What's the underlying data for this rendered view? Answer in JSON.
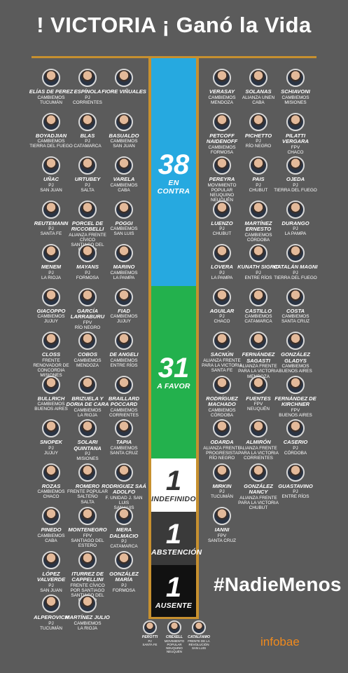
{
  "title": "! VICTORIA ¡  Ganó la Vida",
  "colors": {
    "background": "#5b5b5b",
    "gold": "#c7902f",
    "against": "#26a9e0",
    "favor": "#23b14d",
    "undefined": "#ffffff",
    "abstention": "#3a3a3a",
    "absent": "#111111"
  },
  "tally": {
    "against": {
      "count": "38",
      "label": "EN CONTRA"
    },
    "favor": {
      "count": "31",
      "label": "A FAVOR"
    },
    "undefined": {
      "count": "1",
      "label": "INDEFINIDO"
    },
    "abstention": {
      "count": "1",
      "label": "ABSTENCIÓN"
    },
    "absent": {
      "count": "1",
      "label": "AUSENTE"
    }
  },
  "left_senators": [
    [
      {
        "name": "ELÍAS DE PEREZ",
        "party": "CAMBIEMOS",
        "prov": "TUCUMÁN"
      },
      {
        "name": "ESPÍNOLA",
        "party": "PJ",
        "prov": "CORRIENTES"
      },
      {
        "name": "FIORE VIÑUALES",
        "party": "",
        "prov": ""
      }
    ],
    [
      {
        "name": "BOYADJIAN",
        "party": "CAMBIEMOS",
        "prov": "TIERRA DEL FUEGO"
      },
      {
        "name": "BLAS",
        "party": "PJ",
        "prov": "CATAMARCA"
      },
      {
        "name": "BASUALDO",
        "party": "CAMBIEMOS",
        "prov": "SAN JUAN"
      }
    ],
    [
      {
        "name": "UÑAC",
        "party": "PJ",
        "prov": "SAN JUAN"
      },
      {
        "name": "URTUBEY",
        "party": "PJ",
        "prov": "SALTA"
      },
      {
        "name": "VARELA",
        "party": "CAMBIEMOS",
        "prov": "CABA"
      }
    ],
    [
      {
        "name": "REUTEMANN",
        "party": "PJ",
        "prov": "SANTA FE"
      },
      {
        "name": "PORCEL DE RICCOBELLI",
        "party": "ALIANZA FRENTE CÍVICO",
        "prov": "SANTIAGO DEL ESTERO"
      },
      {
        "name": "POGGI",
        "party": "CAMBIEMOS",
        "prov": "SAN LUIS"
      }
    ],
    [
      {
        "name": "MENEM",
        "party": "PJ",
        "prov": "LA RIOJA"
      },
      {
        "name": "MAYANS",
        "party": "PJ",
        "prov": "FORMOSA"
      },
      {
        "name": "MARINO",
        "party": "CAMBIEMOS",
        "prov": "LA PAMPA"
      }
    ],
    [
      {
        "name": "GIACOPPO",
        "party": "CAMBIEMOS",
        "prov": "JUJUY"
      },
      {
        "name": "GARCÍA LARRABURU",
        "party": "FPV",
        "prov": "RÍO NEGRO"
      },
      {
        "name": "FIAD",
        "party": "CAMBIEMOS",
        "prov": "JUJUY"
      }
    ],
    [
      {
        "name": "CLOSS",
        "party": "FRENTE RENOVADOR DE CONCORDIA",
        "prov": "MISIONES"
      },
      {
        "name": "COBOS",
        "party": "CAMBIEMOS",
        "prov": "MENDOZA"
      },
      {
        "name": "DE ANGELI",
        "party": "CAMBIEMOS",
        "prov": "ENTRE RÍOS"
      }
    ],
    [
      {
        "name": "BULLRICH",
        "party": "CAMBIEMOS",
        "prov": "BUENOS AIRES"
      },
      {
        "name": "BRIZUELA Y DORIA DE CARA",
        "party": "CAMBIEMOS",
        "prov": "LA RIOJA"
      },
      {
        "name": "BRAILLARD POCCARD",
        "party": "CAMBIEMOS",
        "prov": "CORRIENTES"
      }
    ],
    [
      {
        "name": "SNOPEK",
        "party": "PJ",
        "prov": "JUJUY"
      },
      {
        "name": "SOLARI QUINTANA",
        "party": "PJ",
        "prov": "MISIONES"
      },
      {
        "name": "TAPIA",
        "party": "CAMBIEMOS",
        "prov": "SANTA CRUZ"
      }
    ],
    [
      {
        "name": "ROZAS",
        "party": "CAMBIEMOS",
        "prov": "CHACO"
      },
      {
        "name": "ROMERO",
        "party": "FRENTE POPULAR SALTEÑO",
        "prov": "SALTA"
      },
      {
        "name": "RODRIGUEZ SAÁ ADOLFO",
        "party": "F. UNIDAD J. SAN LUIS",
        "prov": "SAN LUIS"
      }
    ],
    [
      {
        "name": "PINEDO",
        "party": "CAMBIEMOS",
        "prov": "CABA"
      },
      {
        "name": "MONTENEGRO",
        "party": "FPV",
        "prov": "SANTIAGO DEL ESTERO"
      },
      {
        "name": "MERA DALMACIO",
        "party": "PJ",
        "prov": "CATAMARCA"
      }
    ],
    [
      {
        "name": "LÓPEZ VALVERDE",
        "party": "PJ",
        "prov": "SAN JUAN"
      },
      {
        "name": "ITURREZ DE CAPPELLINI",
        "party": "FRENTE CÍVICO POR SANTIAGO",
        "prov": "SANTIAGO DEL ESTERO"
      },
      {
        "name": "GONZÁLEZ MARÍA",
        "party": "PJ",
        "prov": "FORMOSA"
      }
    ],
    [
      {
        "name": "ALPEROVICH",
        "party": "PJ",
        "prov": "TUCUMÁN"
      },
      {
        "name": "MARTÍNEZ JULIO",
        "party": "CAMBIEMOS",
        "prov": "LA RIOJA"
      }
    ]
  ],
  "right_senators": [
    [
      {
        "name": "VERASAY",
        "party": "CAMBIEMOS",
        "prov": "MENDOZA"
      },
      {
        "name": "SOLANAS",
        "party": "ALIANZA UNEN",
        "prov": "CABA"
      },
      {
        "name": "SCHIAVONI",
        "party": "CAMBIEMOS",
        "prov": "MISIONES"
      }
    ],
    [
      {
        "name": "PETCOFF NAIDENOFF",
        "party": "CAMBIEMOS",
        "prov": "FORMOSA"
      },
      {
        "name": "PICHETTO",
        "party": "PJ",
        "prov": "RÍO NEGRO"
      },
      {
        "name": "PILATTI VERGARA",
        "party": "FPV",
        "prov": "CHACO"
      }
    ],
    [
      {
        "name": "PEREYRA",
        "party": "MOVIMIENTO POPULAR NEUQUINO",
        "prov": "NEUQUÉN"
      },
      {
        "name": "PAIS",
        "party": "PJ",
        "prov": "CHUBUT"
      },
      {
        "name": "OJEDA",
        "party": "PJ",
        "prov": "TIERRA DEL FUEGO"
      }
    ],
    [
      {
        "name": "LUENZO",
        "party": "PJ",
        "prov": "CHUBUT"
      },
      {
        "name": "MARTÍNEZ ERNESTO",
        "party": "CAMBIEMOS",
        "prov": "CÓRDOBA"
      },
      {
        "name": "DURANGO",
        "party": "PJ",
        "prov": "LA PAMPA"
      }
    ],
    [
      {
        "name": "LOVERA",
        "party": "PJ",
        "prov": "LA PAMPA"
      },
      {
        "name": "KUNATH SIGRID",
        "party": "PJ",
        "prov": "ENTRE RÍOS"
      },
      {
        "name": "CATALÁN MAGNI",
        "party": "PJ",
        "prov": "TIERRA DEL FUEGO"
      }
    ],
    [
      {
        "name": "AGUILAR",
        "party": "PJ",
        "prov": "CHACO"
      },
      {
        "name": "CASTILLO",
        "party": "CAMBIEMOS",
        "prov": "CATAMARCA"
      },
      {
        "name": "COSTA",
        "party": "CAMBIEMOS",
        "prov": "SANTA CRUZ"
      }
    ],
    [
      {
        "name": "SACNÚN",
        "party": "ALIANZA FRENTE PARA LA VICTORIA",
        "prov": "SANTA FE"
      },
      {
        "name": "FERNÁNDEZ SAGASTI",
        "party": "ALIANZA FRENTE PARA LA VICTORIA",
        "prov": "MENDOZA"
      },
      {
        "name": "GONZÁLEZ GLADYS",
        "party": "CAMBIEMOS",
        "prov": "BUENOS AIRES"
      }
    ],
    [
      {
        "name": "RODRÍGUEZ MACHADO",
        "party": "CAMBIEMOS",
        "prov": "CÓRDOBA"
      },
      {
        "name": "FUENTES",
        "party": "FPV",
        "prov": "NEUQUÉN"
      },
      {
        "name": "FERNÁNDEZ DE KIRCHNER",
        "party": "FPV",
        "prov": "BUENOS AIRES"
      }
    ],
    [
      {
        "name": "ODARDA",
        "party": "ALIANZA FRENTE PROGRESISTA",
        "prov": "RÍO NEGRO"
      },
      {
        "name": "ALMIRÓN",
        "party": "ALIANZA FRENTE PARA LA VICTORIA",
        "prov": "CORRIENTES"
      },
      {
        "name": "CASERIO",
        "party": "PJ",
        "prov": "CÓRDOBA"
      }
    ],
    [
      {
        "name": "MIRKIN",
        "party": "PJ",
        "prov": "TUCUMÁN"
      },
      {
        "name": "GONZÁLEZ NANCY",
        "party": "ALIANZA FRENTE PARA LA VICTORIA",
        "prov": "CHUBUT"
      },
      {
        "name": "GUASTAVINO",
        "party": "PJ",
        "prov": "ENTRE RÍOS"
      }
    ],
    [
      {
        "name": "IANNI",
        "party": "FPV",
        "prov": "SANTA CRUZ"
      }
    ]
  ],
  "bottom_senators": [
    {
      "name": "PEROTTI",
      "party": "PJ",
      "prov": "SANTA FE"
    },
    {
      "name": "CREXELL",
      "party": "MOVIMIENTO POPULAR NEUQUINO",
      "prov": "NEUQUÉN"
    },
    {
      "name": "CATALFAMO",
      "party": "FRENTE DE LA REVOLUCIÓN",
      "prov": "SAN LUIS"
    }
  ],
  "hashtag": "#NadieMenos",
  "logo": "infobae"
}
